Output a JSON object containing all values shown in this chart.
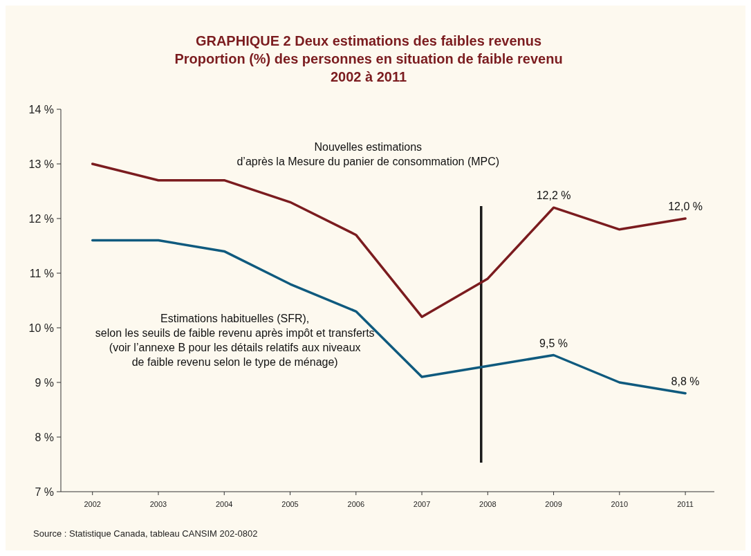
{
  "chart_data": {
    "type": "line",
    "title": "GRAPHIQUE 2 Deux estimations des faibles revenus",
    "subtitle": "Proportion (%) des personnes en situation de faible revenu\n2002 à 2011",
    "x": [
      2002,
      2003,
      2004,
      2005,
      2006,
      2007,
      2008,
      2009,
      2010,
      2011
    ],
    "xlim": [
      2001.52,
      2011.44
    ],
    "xticks": [
      2002,
      2003,
      2004,
      2005,
      2006,
      2007,
      2008,
      2009,
      2010,
      2011
    ],
    "ylim": [
      7,
      14
    ],
    "yticks": [
      {
        "value": 7,
        "label": "7 %"
      },
      {
        "value": 8,
        "label": "8 %"
      },
      {
        "value": 9,
        "label": "9 %"
      },
      {
        "value": 10,
        "label": "10 %"
      },
      {
        "value": 11,
        "label": "11 %"
      },
      {
        "value": 12,
        "label": "12 %"
      },
      {
        "value": 13,
        "label": "13 %"
      },
      {
        "value": 14,
        "label": "14 %"
      }
    ],
    "series": [
      {
        "name": "Nouvelles estimations\nd’après la Mesure du panier de consommation (MPC)",
        "color": "#7b1c1f",
        "values": [
          13.0,
          12.7,
          12.7,
          12.3,
          11.7,
          10.2,
          10.9,
          12.2,
          11.8,
          12.0
        ],
        "value_labels": [
          null,
          null,
          null,
          null,
          null,
          null,
          null,
          "12,2 %",
          null,
          "12,0 %"
        ]
      },
      {
        "name": "Estimations habituelles (SFR),\nselon les seuils de faible revenu après impôt et transferts\n(voir l’annexe B pour les détails relatifs aux niveaux\nde faible revenu selon le type de ménage)",
        "color": "#0f5a7e",
        "values": [
          11.6,
          11.6,
          11.4,
          10.8,
          10.3,
          9.1,
          9.3,
          9.5,
          9.0,
          8.8
        ],
        "value_labels": [
          null,
          null,
          null,
          null,
          null,
          null,
          null,
          "9,5 %",
          null,
          "8,8 %"
        ]
      }
    ],
    "ref_lines": [
      {
        "axis": "x",
        "value": 2007.9,
        "color": "#1a1a1a"
      }
    ],
    "annotations": [
      "Source : Statistique Canada, tableau CANSIM 202-0802"
    ],
    "grid": false,
    "marker": "none",
    "line_style": "solid",
    "legend": false
  }
}
